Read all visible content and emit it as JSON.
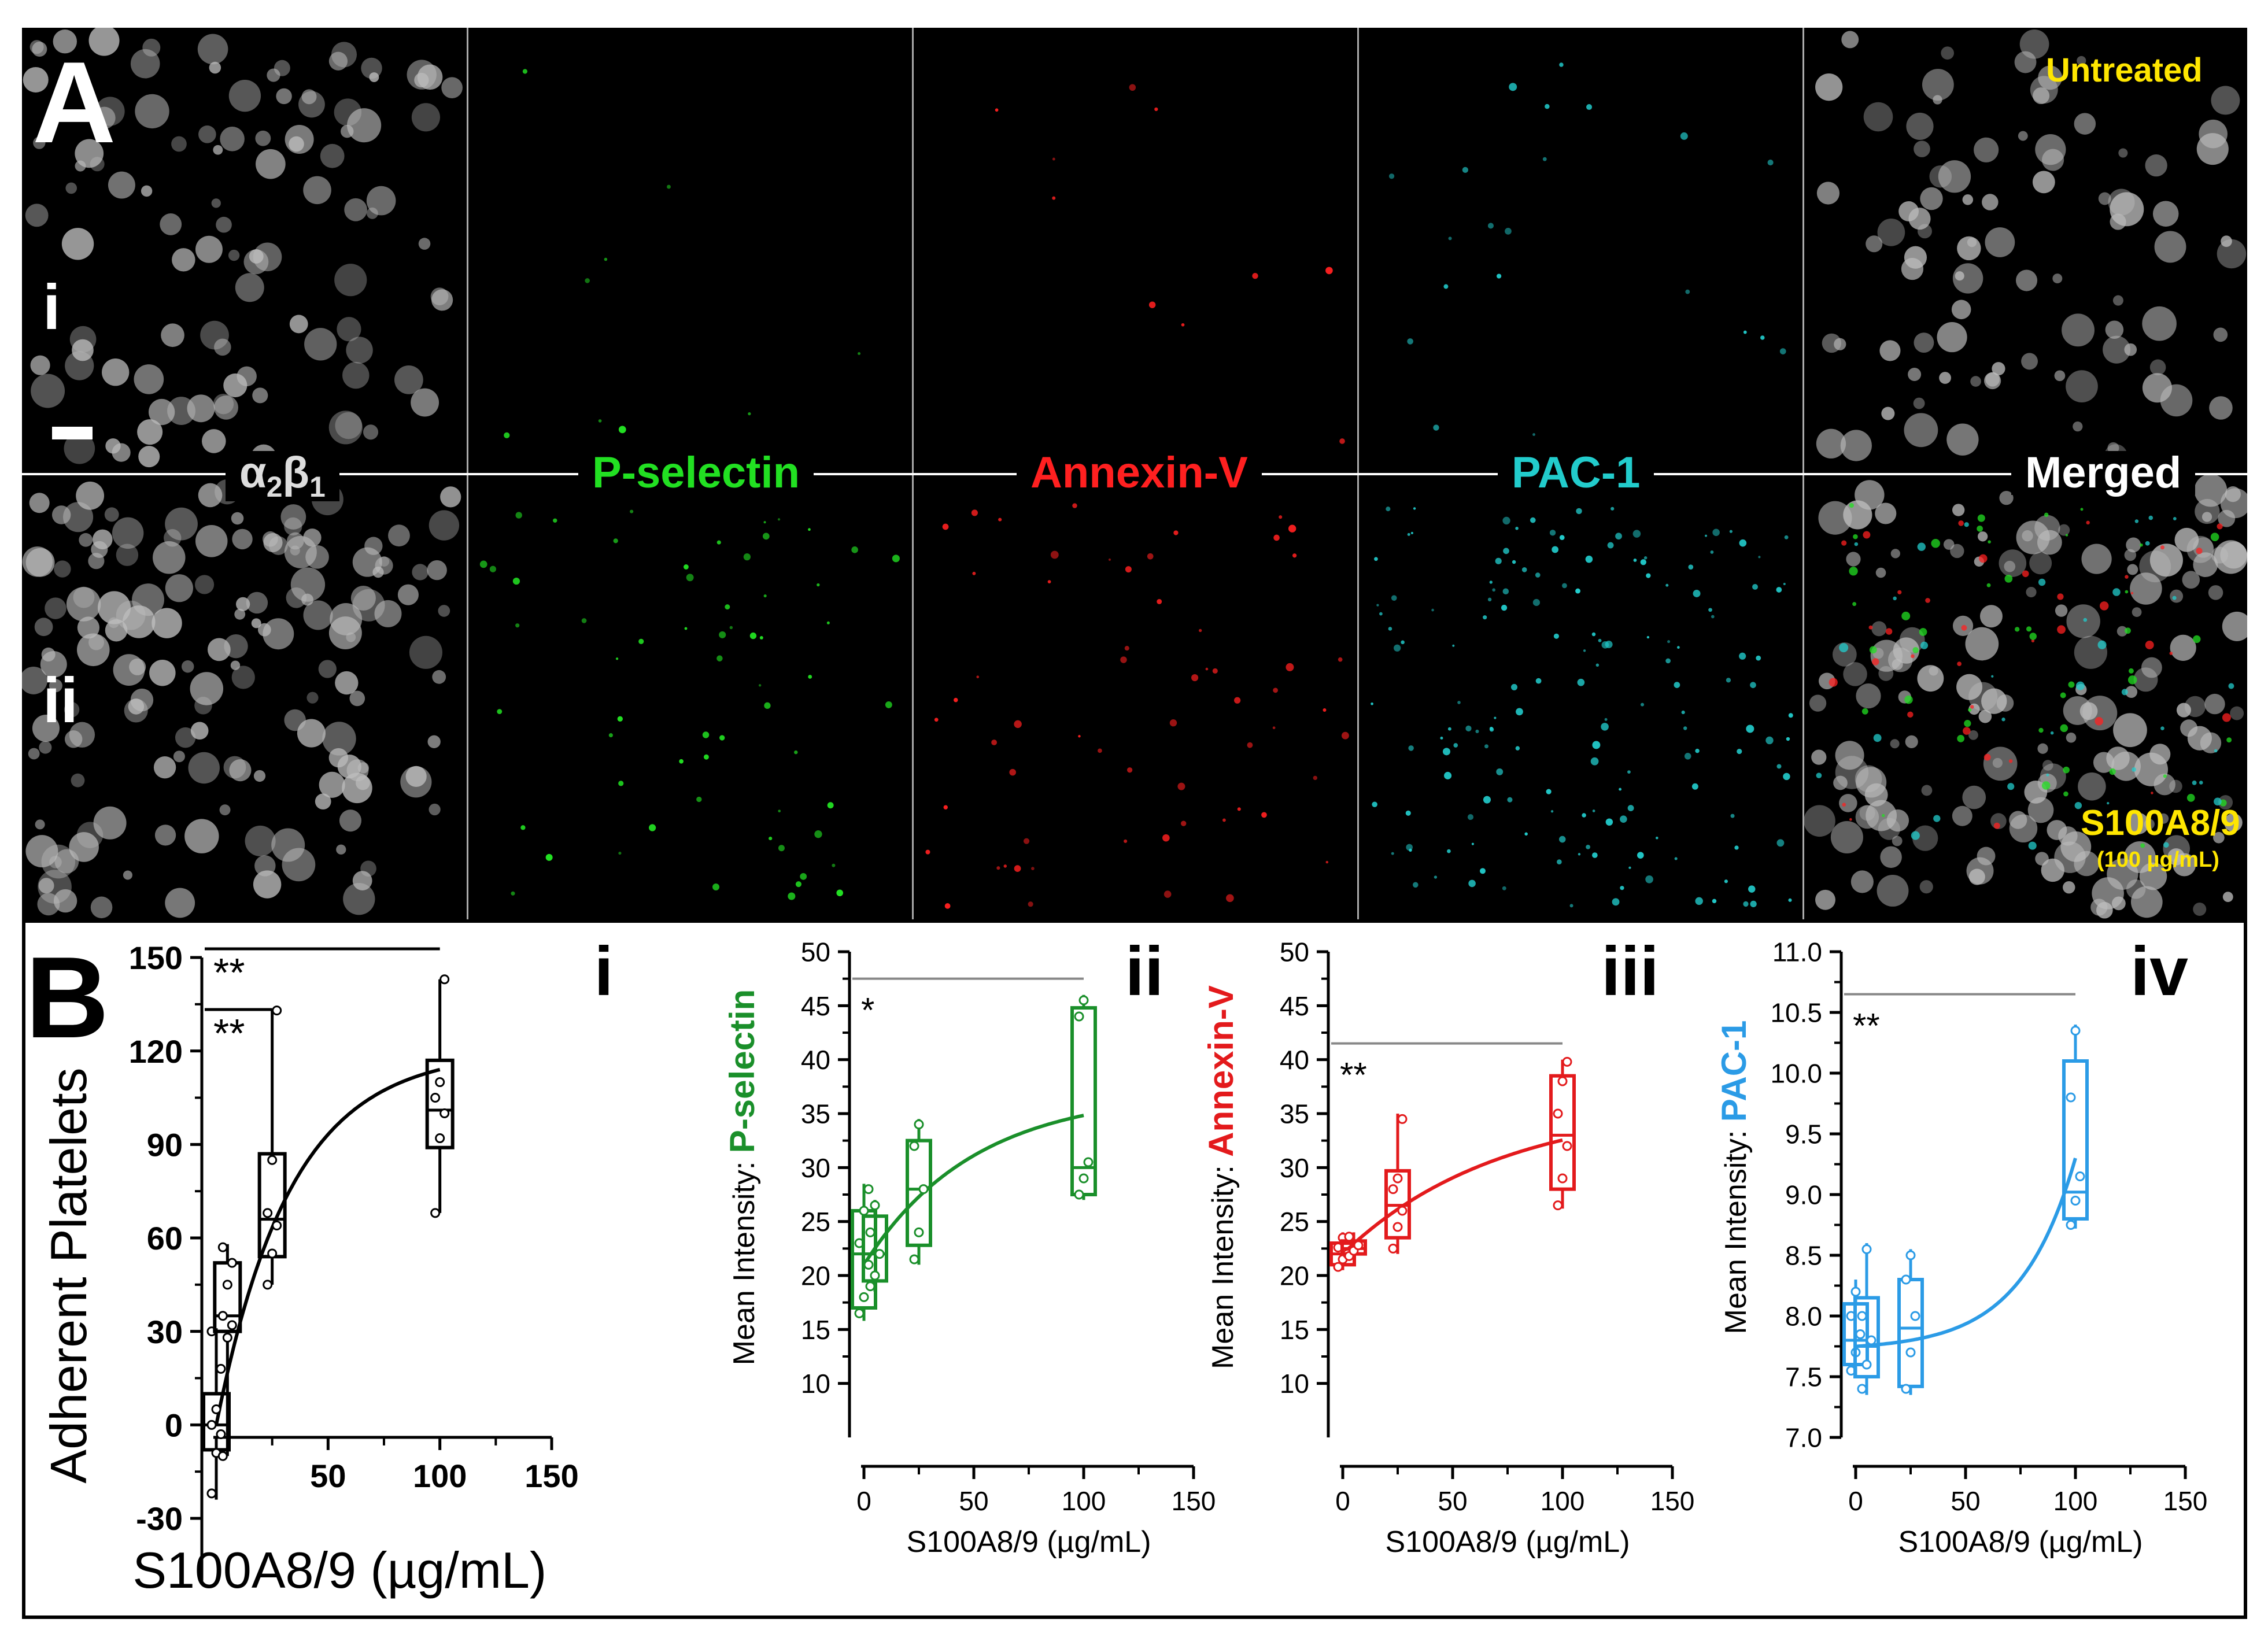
{
  "panel_a": {
    "letter": "A",
    "row_labels": [
      "i",
      "ii"
    ],
    "channels": [
      {
        "label": "α2β1",
        "color": "#dddddd"
      },
      {
        "label": "P-selectin",
        "color": "#22e022"
      },
      {
        "label": "Annexin-V",
        "color": "#ff2020"
      },
      {
        "label": "PAC-1",
        "color": "#22cccc"
      },
      {
        "label": "Merged",
        "color": "#ffffff"
      }
    ],
    "untreated_label": "Untreated",
    "treated_label": "S100A8/9",
    "treated_dose": "(100 µg/mL)"
  },
  "panel_b": {
    "letter": "B"
  },
  "chart_data": [
    {
      "type": "box-with-fit",
      "panel": "i",
      "ylabel": "Adherent Platelets",
      "xlabel": "S100A8/9 (µg/mL)",
      "color": "#000000",
      "ylim": [
        -30,
        150
      ],
      "yticks": [
        -30,
        0,
        30,
        60,
        90,
        120,
        150
      ],
      "xlim": [
        0,
        150
      ],
      "xticks": [
        50,
        100,
        150
      ],
      "groups": [
        {
          "x": 0,
          "min": -24,
          "q1": -8,
          "median": 0,
          "q3": 10,
          "max": 31,
          "points": [
            -22,
            -9,
            -3,
            0,
            5,
            18,
            30
          ]
        },
        {
          "x": 5,
          "min": -10,
          "q1": 30,
          "median": 35,
          "q3": 52,
          "max": 58,
          "points": [
            -10,
            28,
            32,
            35,
            45,
            52,
            57
          ]
        },
        {
          "x": 25,
          "min": 45,
          "q1": 54,
          "median": 66,
          "q3": 87,
          "max": 133,
          "points": [
            45,
            55,
            64,
            68,
            85,
            133
          ]
        },
        {
          "x": 100,
          "min": 68,
          "q1": 89,
          "median": 101,
          "q3": 117,
          "max": 143,
          "points": [
            68,
            92,
            100,
            105,
            110,
            143
          ]
        }
      ],
      "fit": {
        "ymin": 0,
        "span": 120,
        "k": 0.03
      },
      "significance": [
        {
          "x1": 0,
          "x2": 100,
          "label": "**",
          "y": 160
        },
        {
          "x1": 0,
          "x2": 25,
          "label": "**",
          "y": 147
        }
      ]
    },
    {
      "type": "box-with-fit",
      "panel": "ii",
      "ylabel_prefix": "Mean Intensity:",
      "ylabel_marker": "P-selectin",
      "xlabel": "S100A8/9 (µg/mL)",
      "color": "#1a8f2a",
      "ylim": [
        5,
        50
      ],
      "yticks": [
        10,
        15,
        20,
        25,
        30,
        35,
        40,
        45,
        50
      ],
      "xlim": [
        0,
        150
      ],
      "xticks": [
        0,
        50,
        100,
        150
      ],
      "groups": [
        {
          "x": 0,
          "min": 15.8,
          "q1": 17,
          "median": 22,
          "q3": 26,
          "max": 28.5,
          "points": [
            16.5,
            18,
            21,
            23,
            26,
            28
          ]
        },
        {
          "x": 5,
          "min": 18.5,
          "q1": 19.5,
          "median": 22,
          "q3": 25.5,
          "max": 27,
          "points": [
            19,
            20,
            22,
            24,
            26.5
          ]
        },
        {
          "x": 25,
          "min": 21,
          "q1": 22.8,
          "median": 28,
          "q3": 32.5,
          "max": 34.5,
          "points": [
            21.5,
            24,
            28,
            32,
            34
          ]
        },
        {
          "x": 100,
          "min": 27,
          "q1": 27.5,
          "median": 30,
          "q3": 44.8,
          "max": 46,
          "points": [
            27.5,
            29,
            30.5,
            44,
            45.5
          ]
        }
      ],
      "fit": {
        "ymin": 21,
        "span": 16,
        "k": 0.02
      },
      "significance": [
        {
          "x1": 0,
          "x2": 100,
          "label": "*",
          "y": 47.5
        }
      ]
    },
    {
      "type": "box-with-fit",
      "panel": "iii",
      "ylabel_prefix": "Mean Intensity:",
      "ylabel_marker": "Annexin-V",
      "xlabel": "S100A8/9 (µg/mL)",
      "color": "#e31a1c",
      "ylim": [
        5,
        50
      ],
      "yticks": [
        10,
        15,
        20,
        25,
        30,
        35,
        40,
        45,
        50
      ],
      "xlim": [
        0,
        150
      ],
      "xticks": [
        0,
        50,
        100,
        150
      ],
      "groups": [
        {
          "x": 0,
          "min": 20.5,
          "q1": 21,
          "median": 22,
          "q3": 23,
          "max": 24,
          "points": [
            20.8,
            21.5,
            22,
            22.6,
            23.5
          ]
        },
        {
          "x": 5,
          "min": 21.5,
          "q1": 22,
          "median": 22.5,
          "q3": 23.2,
          "max": 24,
          "points": [
            21.8,
            22.3,
            22.8,
            23.6
          ]
        },
        {
          "x": 25,
          "min": 22,
          "q1": 23.5,
          "median": 26.5,
          "q3": 29.7,
          "max": 35,
          "points": [
            22.5,
            24.5,
            26,
            28,
            29,
            34.5
          ]
        },
        {
          "x": 100,
          "min": 26.2,
          "q1": 28,
          "median": 33,
          "q3": 38.5,
          "max": 40,
          "points": [
            26.5,
            29,
            32,
            35,
            38,
            39.8
          ]
        }
      ],
      "fit": {
        "ymin": 22,
        "span": 14,
        "k": 0.014
      },
      "significance": [
        {
          "x1": 0,
          "x2": 100,
          "label": "**",
          "y": 41.5
        }
      ]
    },
    {
      "type": "box-with-fit",
      "panel": "iv",
      "ylabel_prefix": "Mean Intensity:",
      "ylabel_marker": "PAC-1",
      "xlabel": "S100A8/9 (µg/mL)",
      "color": "#2b9be6",
      "ylim": [
        7.0,
        11.0
      ],
      "yticks": [
        7.0,
        7.5,
        8.0,
        8.5,
        9.0,
        9.5,
        10.0,
        10.5,
        11.0
      ],
      "xlim": [
        0,
        150
      ],
      "xticks": [
        0,
        50,
        100,
        150
      ],
      "groups": [
        {
          "x": 0,
          "min": 7.5,
          "q1": 7.6,
          "median": 7.8,
          "q3": 8.1,
          "max": 8.3,
          "points": [
            7.55,
            7.7,
            7.85,
            8.0,
            8.2
          ]
        },
        {
          "x": 5,
          "min": 7.35,
          "q1": 7.5,
          "median": 7.75,
          "q3": 8.15,
          "max": 8.6,
          "points": [
            7.4,
            7.6,
            7.8,
            8.0,
            8.55
          ]
        },
        {
          "x": 25,
          "min": 7.35,
          "q1": 7.42,
          "median": 7.9,
          "q3": 8.3,
          "max": 8.55,
          "points": [
            7.4,
            7.7,
            8.0,
            8.3,
            8.5
          ]
        },
        {
          "x": 100,
          "min": 8.72,
          "q1": 8.8,
          "median": 9.02,
          "q3": 10.1,
          "max": 10.4,
          "points": [
            8.75,
            8.95,
            9.15,
            9.8,
            10.35
          ]
        }
      ],
      "fit": {
        "ymin": 7.75,
        "span": 1.55,
        "k": 0.04,
        "shape": "exp-growth"
      },
      "significance": [
        {
          "x1": 0,
          "x2": 100,
          "label": "**",
          "y": 10.65
        }
      ]
    }
  ]
}
